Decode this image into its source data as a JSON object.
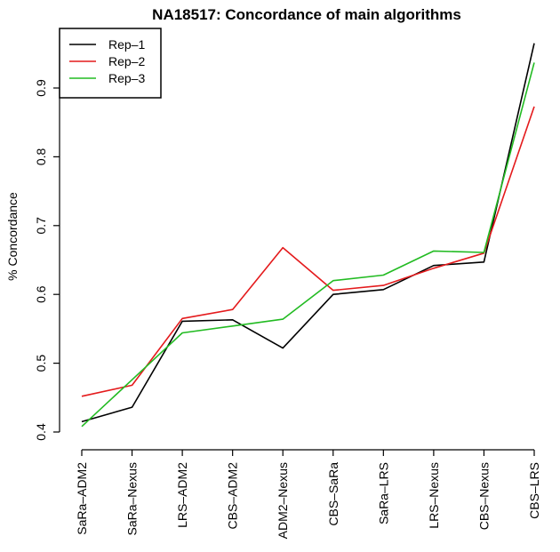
{
  "chart_data": {
    "type": "line",
    "title": "NA18517: Concordance of main algorithms",
    "xlabel": "",
    "ylabel": "% Concordance",
    "categories": [
      "SaRa–ADM2",
      "SaRa–Nexus",
      "LRS–ADM2",
      "CBS–ADM2",
      "ADM2–Nexus",
      "CBS–SaRa",
      "SaRa–LRS",
      "LRS–Nexus",
      "CBS–Nexus",
      "CBS–LRS"
    ],
    "yticks": [
      "0.4",
      "0.5",
      "0.6",
      "0.7",
      "0.8",
      "0.9"
    ],
    "ylim": [
      0.4,
      0.9
    ],
    "grid": false,
    "legend": "top-left",
    "series": [
      {
        "name": "Rep–1",
        "color": "#000000",
        "values": [
          0.415,
          0.436,
          0.561,
          0.563,
          0.522,
          0.6,
          0.607,
          0.642,
          0.647,
          0.965
        ]
      },
      {
        "name": "Rep–2",
        "color": "#e41a1c",
        "values": [
          0.452,
          0.468,
          0.565,
          0.578,
          0.668,
          0.606,
          0.613,
          0.638,
          0.66,
          0.873
        ]
      },
      {
        "name": "Rep–3",
        "color": "#22bb22",
        "values": [
          0.408,
          0.476,
          0.544,
          0.554,
          0.564,
          0.62,
          0.628,
          0.663,
          0.661,
          0.937
        ]
      }
    ]
  }
}
